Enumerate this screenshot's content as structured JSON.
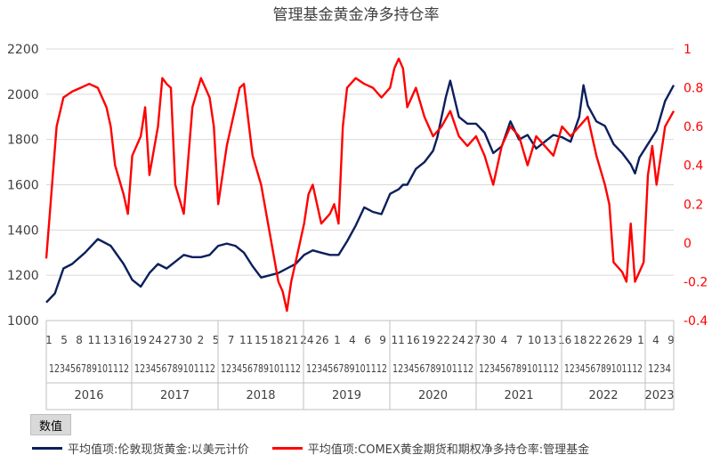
{
  "chart_data": {
    "type": "line",
    "title": "管理基金黄金净多持仓率",
    "field_button": "数值",
    "y_left": {
      "ticks": [
        "1000",
        "1200",
        "1400",
        "1600",
        "1800",
        "2000",
        "2200"
      ],
      "lim": [
        1000,
        2200
      ]
    },
    "y_right": {
      "ticks": [
        "-0.4",
        "-0.2",
        "0",
        "0.2",
        "0.4",
        "0.6",
        "0.8",
        "1"
      ],
      "lim": [
        -0.4,
        1.0
      ]
    },
    "x_month_row1": [
      "1",
      "5",
      "8",
      "11",
      "13",
      "16",
      "19",
      "24",
      "27",
      "30",
      "2",
      "5",
      "7",
      "11",
      "15",
      "18",
      "21",
      "24",
      "26",
      "1",
      "4",
      "6",
      "9",
      "11",
      "16",
      "19",
      "22",
      "24",
      "27",
      "30",
      "4",
      "7",
      "10",
      "13",
      "16",
      "18",
      "22",
      "26",
      "29",
      "1",
      "4",
      "9"
    ],
    "x_month_row2": [
      "123456789101112",
      "123456789101112",
      "123456789101112",
      "123456789101112",
      "123456789101112",
      "123456789101112",
      "123456789101112",
      "1234"
    ],
    "x_years": [
      "2016",
      "2017",
      "2018",
      "2019",
      "2020",
      "2021",
      "2022",
      "2023"
    ],
    "colors": {
      "gold": "#0b1f5c",
      "ratio": "#ff0000"
    },
    "series": [
      {
        "name": "平均值项:伦敦现货黄金:以美元计价",
        "axis": "left",
        "x": [
          2016.0,
          2016.1,
          2016.2,
          2016.3,
          2016.45,
          2016.6,
          2016.75,
          2016.9,
          2017.0,
          2017.1,
          2017.2,
          2017.3,
          2017.4,
          2017.5,
          2017.6,
          2017.7,
          2017.8,
          2017.9,
          2018.0,
          2018.1,
          2018.2,
          2018.3,
          2018.4,
          2018.5,
          2018.6,
          2018.7,
          2018.8,
          2018.9,
          2019.0,
          2019.1,
          2019.2,
          2019.3,
          2019.4,
          2019.5,
          2019.6,
          2019.7,
          2019.8,
          2019.9,
          2020.0,
          2020.1,
          2020.15,
          2020.2,
          2020.3,
          2020.4,
          2020.5,
          2020.55,
          2020.6,
          2020.65,
          2020.7,
          2020.8,
          2020.9,
          2021.0,
          2021.1,
          2021.2,
          2021.3,
          2021.4,
          2021.5,
          2021.6,
          2021.7,
          2021.8,
          2021.9,
          2022.0,
          2022.1,
          2022.2,
          2022.25,
          2022.3,
          2022.4,
          2022.5,
          2022.6,
          2022.7,
          2022.8,
          2022.85,
          2022.9,
          2023.0,
          2023.1,
          2023.2,
          2023.3
        ],
        "values": [
          1080,
          1120,
          1230,
          1250,
          1300,
          1360,
          1330,
          1250,
          1180,
          1150,
          1210,
          1250,
          1230,
          1260,
          1290,
          1280,
          1280,
          1290,
          1330,
          1340,
          1330,
          1300,
          1240,
          1190,
          1200,
          1210,
          1230,
          1250,
          1290,
          1310,
          1300,
          1290,
          1290,
          1350,
          1420,
          1500,
          1480,
          1470,
          1560,
          1580,
          1600,
          1600,
          1670,
          1700,
          1750,
          1810,
          1900,
          1990,
          2060,
          1900,
          1870,
          1870,
          1830,
          1740,
          1770,
          1880,
          1800,
          1820,
          1760,
          1790,
          1820,
          1810,
          1790,
          1900,
          2040,
          1950,
          1880,
          1860,
          1780,
          1740,
          1690,
          1650,
          1720,
          1780,
          1840,
          1970,
          2040
        ]
      },
      {
        "name": "平均值项:COMEX黄金期货和期权净多持仓率:管理基金",
        "axis": "right",
        "x": [
          2016.0,
          2016.05,
          2016.12,
          2016.2,
          2016.3,
          2016.4,
          2016.5,
          2016.6,
          2016.7,
          2016.75,
          2016.8,
          2016.9,
          2016.95,
          2017.0,
          2017.1,
          2017.15,
          2017.2,
          2017.3,
          2017.35,
          2017.4,
          2017.45,
          2017.5,
          2017.6,
          2017.7,
          2017.8,
          2017.85,
          2017.9,
          2017.95,
          2018.0,
          2018.1,
          2018.2,
          2018.25,
          2018.3,
          2018.4,
          2018.5,
          2018.6,
          2018.7,
          2018.75,
          2018.8,
          2018.85,
          2018.9,
          2019.0,
          2019.05,
          2019.1,
          2019.2,
          2019.3,
          2019.35,
          2019.4,
          2019.45,
          2019.5,
          2019.6,
          2019.7,
          2019.8,
          2019.9,
          2020.0,
          2020.05,
          2020.1,
          2020.15,
          2020.2,
          2020.3,
          2020.4,
          2020.5,
          2020.6,
          2020.7,
          2020.8,
          2020.9,
          2021.0,
          2021.1,
          2021.2,
          2021.3,
          2021.4,
          2021.5,
          2021.6,
          2021.7,
          2021.8,
          2021.9,
          2022.0,
          2022.1,
          2022.2,
          2022.3,
          2022.4,
          2022.5,
          2022.55,
          2022.6,
          2022.7,
          2022.75,
          2022.8,
          2022.85,
          2022.9,
          2022.95,
          2023.0,
          2023.05,
          2023.1,
          2023.2,
          2023.3
        ],
        "values": [
          -0.08,
          0.2,
          0.6,
          0.75,
          0.78,
          0.8,
          0.82,
          0.8,
          0.7,
          0.6,
          0.4,
          0.25,
          0.15,
          0.45,
          0.55,
          0.7,
          0.35,
          0.6,
          0.85,
          0.82,
          0.8,
          0.3,
          0.15,
          0.7,
          0.85,
          0.8,
          0.75,
          0.6,
          0.2,
          0.5,
          0.7,
          0.8,
          0.82,
          0.45,
          0.3,
          0.05,
          -0.2,
          -0.25,
          -0.35,
          -0.2,
          -0.1,
          0.1,
          0.25,
          0.3,
          0.1,
          0.15,
          0.2,
          0.1,
          0.6,
          0.8,
          0.85,
          0.82,
          0.8,
          0.75,
          0.8,
          0.9,
          0.95,
          0.9,
          0.7,
          0.8,
          0.65,
          0.55,
          0.6,
          0.68,
          0.55,
          0.5,
          0.55,
          0.45,
          0.3,
          0.5,
          0.6,
          0.55,
          0.4,
          0.55,
          0.5,
          0.45,
          0.6,
          0.55,
          0.6,
          0.65,
          0.45,
          0.3,
          0.2,
          -0.1,
          -0.15,
          -0.2,
          0.1,
          -0.2,
          -0.15,
          -0.1,
          0.35,
          0.5,
          0.3,
          0.6,
          0.68
        ]
      }
    ]
  }
}
